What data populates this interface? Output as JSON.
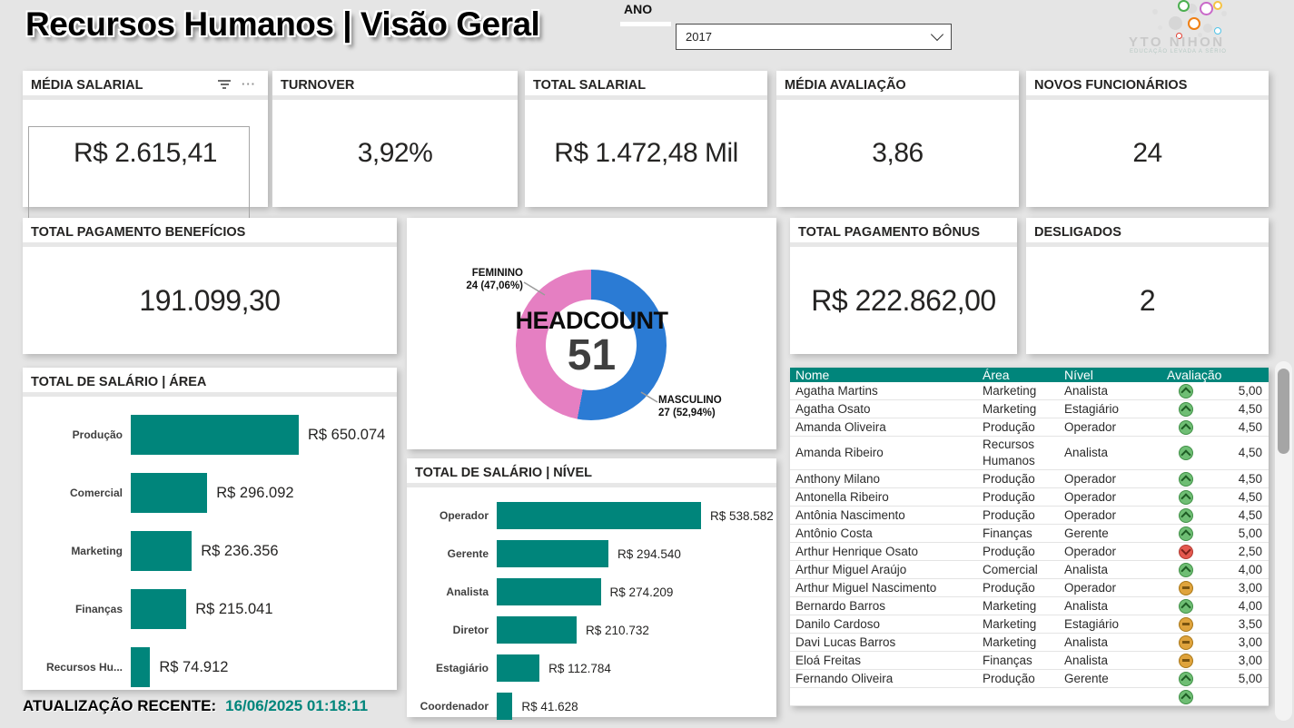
{
  "header": {
    "title": "Recursos Humanos | Visão Geral",
    "slicer_label": "ANO",
    "slicer_value": "2017",
    "logo_text": "YTO NIHON",
    "logo_tagline": "EDUCAÇÃO LEVADA A SÉRIO"
  },
  "kpis": [
    {
      "title": "MÉDIA SALARIAL",
      "value": "R$ 2.615,41",
      "selected": true
    },
    {
      "title": "TURNOVER",
      "value": "3,92%"
    },
    {
      "title": "TOTAL SALARIAL",
      "value": "R$ 1.472,48 Mil"
    },
    {
      "title": "MÉDIA AVALIAÇÃO",
      "value": "3,86"
    },
    {
      "title": "NOVOS FUNCIONÁRIOS",
      "value": "24"
    }
  ],
  "cards": {
    "beneficios": {
      "title": "TOTAL PAGAMENTO BENEFÍCIOS",
      "value": "191.099,30"
    },
    "bonus": {
      "title": "TOTAL PAGAMENTO BÔNUS",
      "value": "R$ 222.862,00"
    },
    "desligados": {
      "title": "DESLIGADOS",
      "value": "2"
    }
  },
  "chart_data": [
    {
      "type": "pie",
      "title": "HEADCOUNT",
      "center_value": "51",
      "categories": [
        "MASCULINO",
        "FEMININO"
      ],
      "values": [
        27,
        24
      ],
      "pct_labels": [
        "27 (52,94%)",
        "24 (47,06%)"
      ],
      "colors": [
        "#2b7bd4",
        "#e57fc2"
      ],
      "legend_position": "callout-labels"
    },
    {
      "type": "bar",
      "orientation": "horizontal",
      "title": "TOTAL DE SALÁRIO | ÁREA",
      "categories": [
        "Produção",
        "Comercial",
        "Marketing",
        "Finanças",
        "Recursos Hu..."
      ],
      "values": [
        650074,
        296092,
        236356,
        215041,
        74912
      ],
      "value_labels": [
        "R$ 650.074",
        "R$ 296.092",
        "R$ 236.356",
        "R$ 215.041",
        "R$ 74.912"
      ],
      "bar_color": "#00857b"
    },
    {
      "type": "bar",
      "orientation": "horizontal",
      "title": "TOTAL DE SALÁRIO | NÍVEL",
      "categories": [
        "Operador",
        "Gerente",
        "Analista",
        "Diretor",
        "Estagiário",
        "Coordenador"
      ],
      "values": [
        538582,
        294540,
        274209,
        210732,
        112784,
        41628
      ],
      "value_labels": [
        "R$ 538.582",
        "R$ 294.540",
        "R$ 274.209",
        "R$ 210.732",
        "R$ 112.784",
        "R$ 41.628"
      ],
      "bar_color": "#00857b"
    },
    {
      "type": "table",
      "columns": [
        "Nome",
        "Área",
        "Nível",
        "Avaliação"
      ],
      "sorted_by": "Nome ascending",
      "rows": [
        {
          "nome": "Agatha Martins",
          "area": "Marketing",
          "nivel": "Analista",
          "status": "up",
          "avaliacao": "5,00"
        },
        {
          "nome": "Agatha Osato",
          "area": "Marketing",
          "nivel": "Estagiário",
          "status": "up",
          "avaliacao": "4,50"
        },
        {
          "nome": "Amanda Oliveira",
          "area": "Produção",
          "nivel": "Operador",
          "status": "up",
          "avaliacao": "4,50"
        },
        {
          "nome": "Amanda Ribeiro",
          "area": "Recursos Humanos",
          "nivel": "Analista",
          "status": "up",
          "avaliacao": "4,50"
        },
        {
          "nome": "Anthony Milano",
          "area": "Produção",
          "nivel": "Operador",
          "status": "up",
          "avaliacao": "4,50"
        },
        {
          "nome": "Antonella Ribeiro",
          "area": "Produção",
          "nivel": "Operador",
          "status": "up",
          "avaliacao": "4,50"
        },
        {
          "nome": "Antônia Nascimento",
          "area": "Produção",
          "nivel": "Operador",
          "status": "up",
          "avaliacao": "4,50"
        },
        {
          "nome": "Antônio Costa",
          "area": "Finanças",
          "nivel": "Gerente",
          "status": "up",
          "avaliacao": "5,00"
        },
        {
          "nome": "Arthur Henrique Osato",
          "area": "Produção",
          "nivel": "Operador",
          "status": "down",
          "avaliacao": "2,50"
        },
        {
          "nome": "Arthur Miguel Araújo",
          "area": "Comercial",
          "nivel": "Analista",
          "status": "up",
          "avaliacao": "4,00"
        },
        {
          "nome": "Arthur Miguel Nascimento",
          "area": "Produção",
          "nivel": "Operador",
          "status": "dash",
          "avaliacao": "3,00"
        },
        {
          "nome": "Bernardo Barros",
          "area": "Marketing",
          "nivel": "Analista",
          "status": "up",
          "avaliacao": "4,00"
        },
        {
          "nome": "Danilo Cardoso",
          "area": "Marketing",
          "nivel": "Estagiário",
          "status": "dash",
          "avaliacao": "3,50"
        },
        {
          "nome": "Davi Lucas Barros",
          "area": "Marketing",
          "nivel": "Analista",
          "status": "dash",
          "avaliacao": "3,00"
        },
        {
          "nome": "Eloá Freitas",
          "area": "Finanças",
          "nivel": "Analista",
          "status": "dash",
          "avaliacao": "3,00"
        },
        {
          "nome": "Fernando Oliveira",
          "area": "Produção",
          "nivel": "Gerente",
          "status": "up",
          "avaliacao": "5,00"
        }
      ],
      "partial_next_row_status": "up"
    }
  ],
  "footer": {
    "label": "ATUALIZAÇÃO RECENTE:",
    "timestamp": "16/06/2025 01:18:11"
  },
  "colors": {
    "accent_teal": "#00857b",
    "donut_blue": "#2b7bd4",
    "donut_pink": "#e57fc2",
    "status_up": "#6fbe74",
    "status_down": "#e4584e",
    "status_neutral": "#dfa33c",
    "table_header_bg": "#00857b"
  },
  "icons": {
    "kpi_card_hover": [
      "filter-icon",
      "more-options-icon"
    ],
    "slicer": "chevron-down-icon",
    "table_sort": "sort-ascending-icon",
    "status": [
      "circle-chevron-up-icon",
      "circle-dash-icon",
      "circle-chevron-down-icon"
    ]
  }
}
